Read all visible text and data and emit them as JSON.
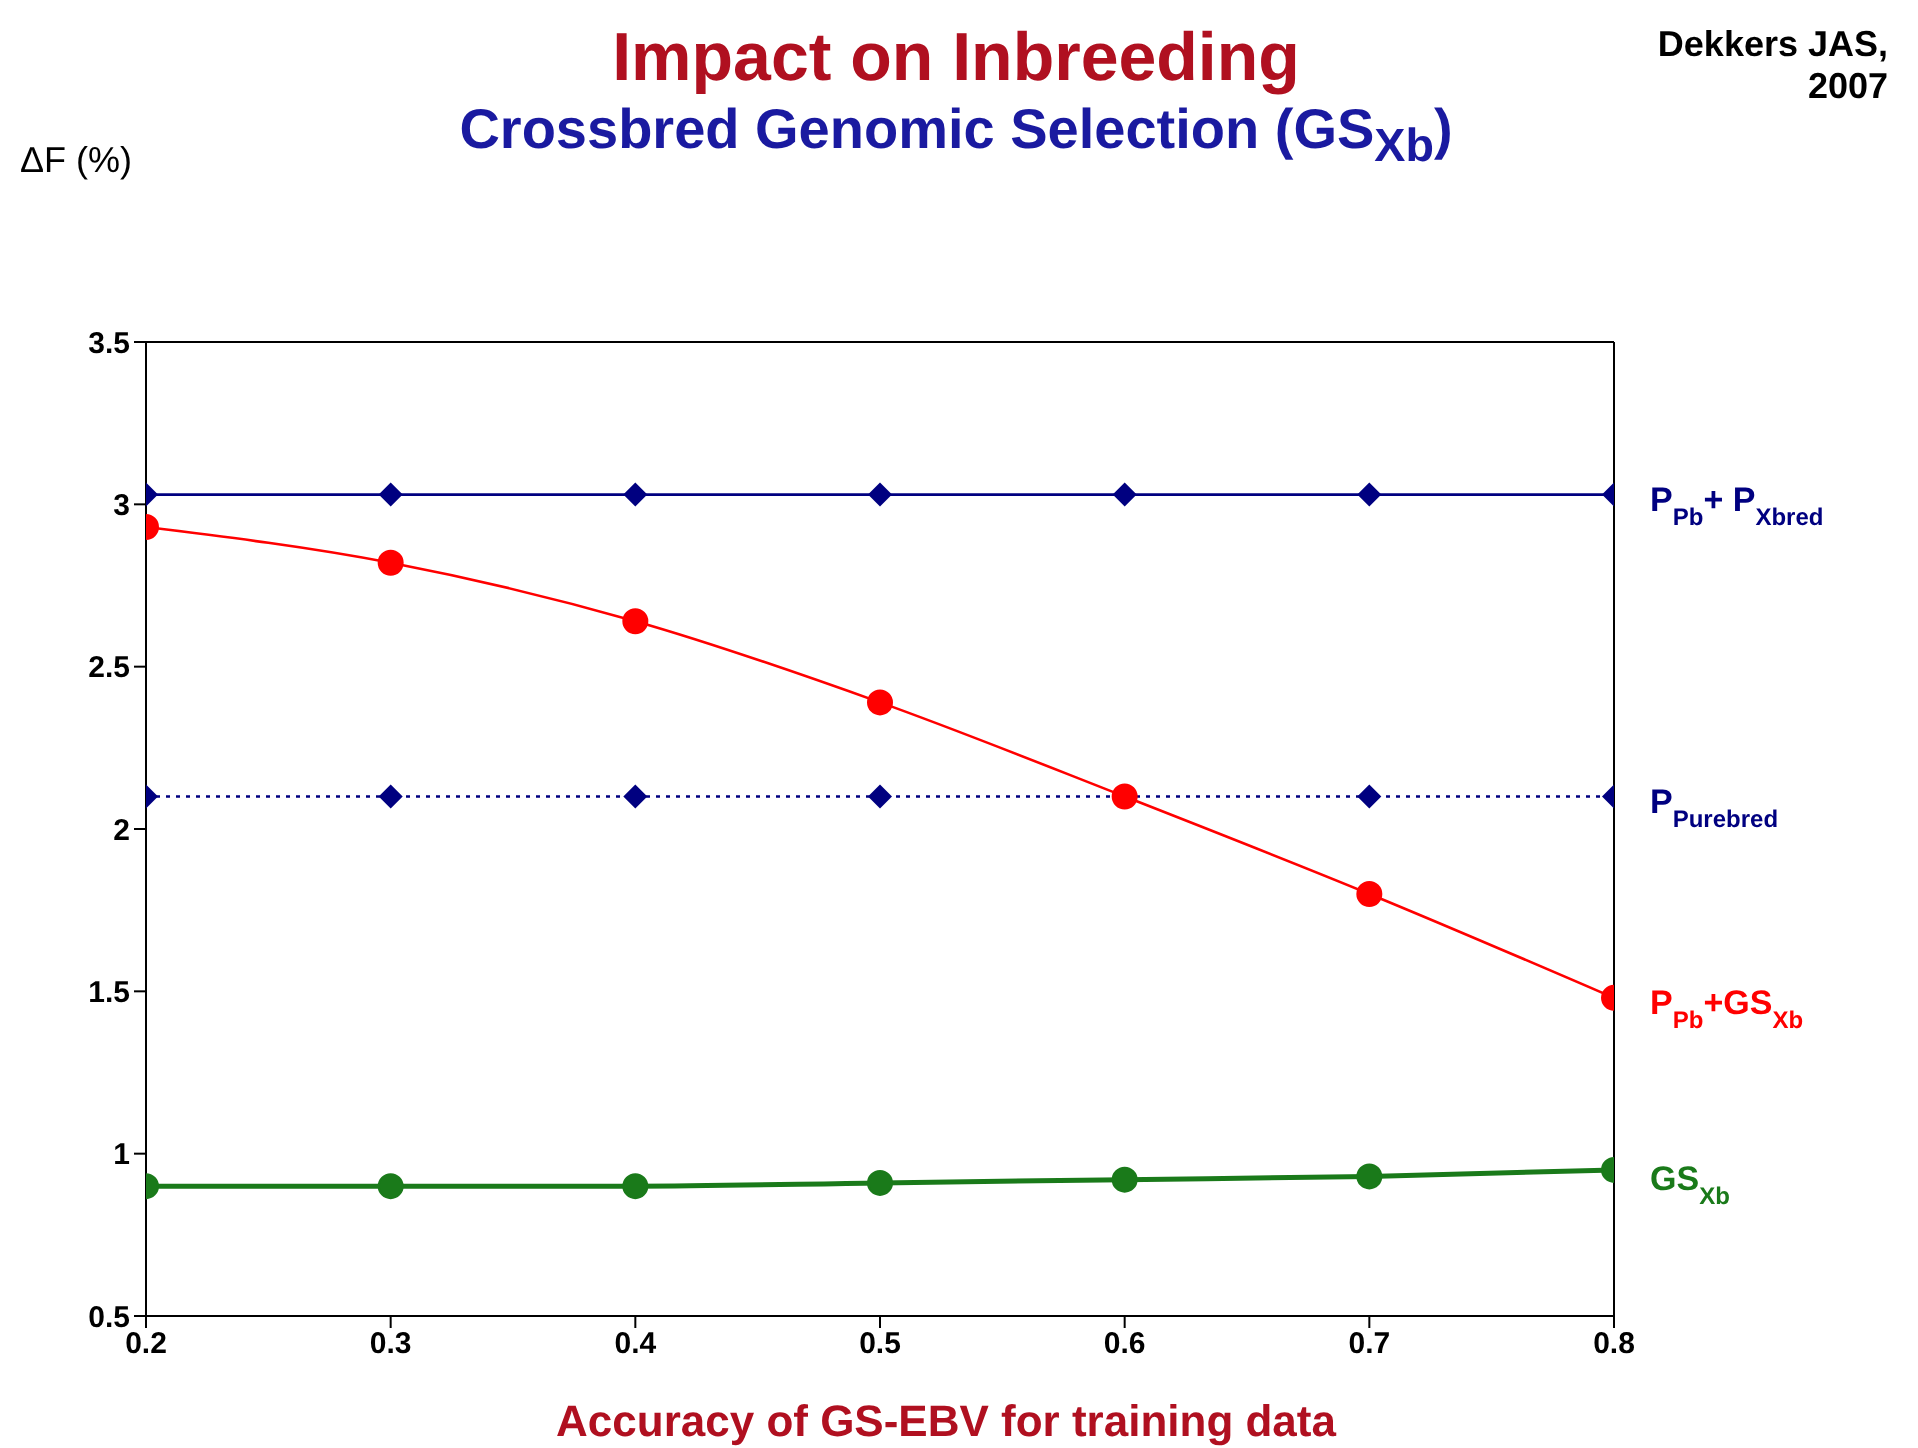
{
  "chart_data": {
    "type": "line",
    "title": "Impact on Inbreeding",
    "subtitle": "Crossbred Genomic Selection (GS$_{Xb}$)",
    "ylabel": "ΔF (%)",
    "xlabel": "Accuracy of GS-EBV for training data",
    "annotations": [
      "Dekkers JAS, 2007"
    ],
    "x": [
      0.2,
      0.3,
      0.4,
      0.5,
      0.6,
      0.7,
      0.8
    ],
    "series": [
      {
        "name": "P$_{Pb}$+ P$_{Xbred}$",
        "color": "#000080",
        "marker": "diamond",
        "line_style": "solid",
        "values": [
          3.03,
          3.03,
          3.03,
          3.03,
          3.03,
          3.03,
          3.03
        ]
      },
      {
        "name": "P$_{Purebred}$",
        "color": "#000080",
        "marker": "diamond",
        "line_style": "dotted",
        "values": [
          2.1,
          2.1,
          2.1,
          2.1,
          2.1,
          2.1,
          2.1
        ]
      },
      {
        "name": "P$_{Pb}$+GS$_{Xb}$",
        "color": "#ff0000",
        "marker": "circle",
        "line_style": "solid",
        "values": [
          2.93,
          2.82,
          2.64,
          2.39,
          2.1,
          1.8,
          1.48
        ]
      },
      {
        "name": "GS$_{Xb}$",
        "color": "#1a7a1a",
        "marker": "circle",
        "line_style": "solid",
        "values": [
          0.9,
          0.9,
          0.9,
          0.91,
          0.92,
          0.93,
          0.95
        ]
      }
    ],
    "xlim": [
      0.2,
      0.8
    ],
    "xticks": [
      0.2,
      0.3,
      0.4,
      0.5,
      0.6,
      0.7,
      0.8
    ],
    "ylim": [
      0.5,
      3.5
    ],
    "yticks": [
      0.5,
      1,
      1.5,
      2,
      2.5,
      3,
      3.5
    ],
    "grid": false
  }
}
